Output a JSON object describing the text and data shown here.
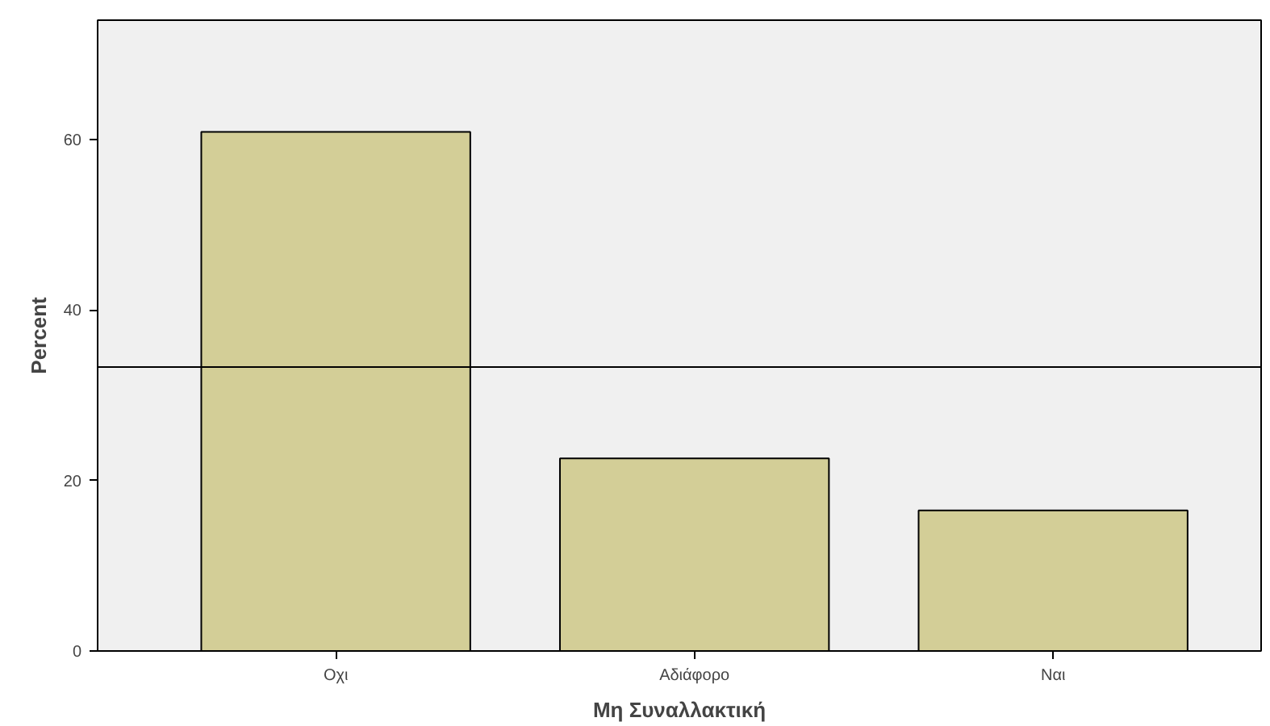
{
  "chart_data": {
    "type": "bar",
    "xlabel": "Μη Συναλλακτική",
    "ylabel": "Percent",
    "categories": [
      "Οχι",
      "Αδιάφορο",
      "Ναι"
    ],
    "values": [
      60.9,
      22.6,
      16.5
    ],
    "color": "#d3ce97",
    "ylim": [
      0,
      74
    ],
    "yticks": [
      0,
      20,
      40,
      60
    ],
    "grid": false,
    "ref_lines": [
      {
        "axis": "y",
        "value": 33.3,
        "color": "#000000"
      }
    ]
  }
}
